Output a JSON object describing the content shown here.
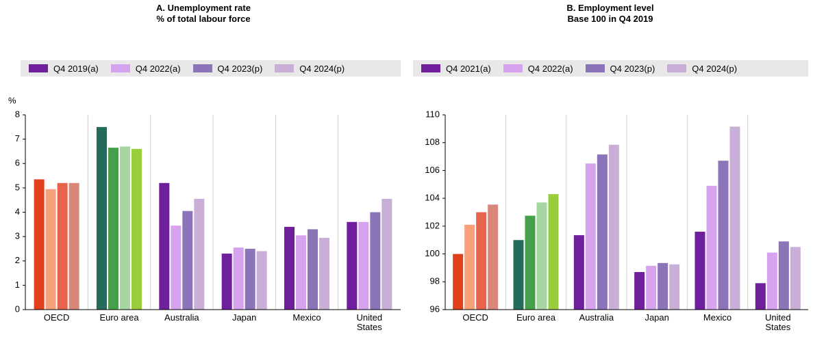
{
  "chart_data": [
    {
      "type": "bar",
      "title": "A. Unemployment rate",
      "subtitle": "% of total labour force",
      "y_label": "%",
      "categories": [
        "OECD",
        "Euro area",
        "Australia",
        "Japan",
        "Mexico",
        "United States"
      ],
      "series": [
        {
          "name": "Q4 2019(a)",
          "color": "#6f1f9b",
          "colors": [
            "#e0401c",
            "#236b5a",
            "#6f1f9b",
            "#6f1f9b",
            "#6f1f9b",
            "#6f1f9b"
          ],
          "values": [
            5.35,
            7.5,
            5.2,
            2.3,
            3.4,
            3.6
          ]
        },
        {
          "name": "Q4 2022(a)",
          "color": "#d7a2ee",
          "colors": [
            "#f7a07c",
            "#46a04a",
            "#d7a2ee",
            "#d7a2ee",
            "#d7a2ee",
            "#d7a2ee"
          ],
          "values": [
            4.95,
            6.65,
            3.45,
            2.55,
            3.05,
            3.6
          ]
        },
        {
          "name": "Q4 2023(p)",
          "color": "#8c74b8",
          "colors": [
            "#e8634c",
            "#a6d6a2",
            "#8c74b8",
            "#8c74b8",
            "#8c74b8",
            "#8c74b8"
          ],
          "values": [
            5.2,
            6.7,
            4.05,
            2.5,
            3.3,
            4.0
          ]
        },
        {
          "name": "Q4 2024(p)",
          "color": "#c9aed8",
          "colors": [
            "#d9877a",
            "#9acd3c",
            "#c9aed8",
            "#c9aed8",
            "#c9aed8",
            "#c9aed8"
          ],
          "values": [
            5.2,
            6.6,
            4.55,
            2.4,
            2.95,
            4.55
          ]
        }
      ],
      "ylim": [
        0,
        8
      ],
      "yticks": [
        0,
        1,
        2,
        3,
        4,
        5,
        6,
        7,
        8
      ]
    },
    {
      "type": "bar",
      "title": "B. Employment level",
      "subtitle": "Base 100 in Q4 2019",
      "categories": [
        "OECD",
        "Euro area",
        "Australia",
        "Japan",
        "Mexico",
        "United States"
      ],
      "series": [
        {
          "name": "Q4 2021(a)",
          "color": "#6f1f9b",
          "colors": [
            "#e0401c",
            "#236b5a",
            "#6f1f9b",
            "#6f1f9b",
            "#6f1f9b",
            "#6f1f9b"
          ],
          "values": [
            100.0,
            101.0,
            101.35,
            98.7,
            101.6,
            97.9
          ]
        },
        {
          "name": "Q4 2022(a)",
          "color": "#d7a2ee",
          "colors": [
            "#f7a07c",
            "#46a04a",
            "#d7a2ee",
            "#d7a2ee",
            "#d7a2ee",
            "#d7a2ee"
          ],
          "values": [
            102.1,
            102.75,
            106.5,
            99.15,
            104.9,
            100.1
          ]
        },
        {
          "name": "Q4 2023(p)",
          "color": "#8c74b8",
          "colors": [
            "#e8634c",
            "#a6d6a2",
            "#8c74b8",
            "#8c74b8",
            "#8c74b8",
            "#8c74b8"
          ],
          "values": [
            103.0,
            103.7,
            107.15,
            99.35,
            106.7,
            100.9
          ]
        },
        {
          "name": "Q4 2024(p)",
          "color": "#c9aed8",
          "colors": [
            "#d9877a",
            "#9acd3c",
            "#c9aed8",
            "#c9aed8",
            "#c9aed8",
            "#c9aed8"
          ],
          "values": [
            103.55,
            104.3,
            107.85,
            99.25,
            109.15,
            100.5
          ]
        }
      ],
      "ylim": [
        96,
        110
      ],
      "yticks": [
        96,
        98,
        100,
        102,
        104,
        106,
        108,
        110
      ]
    }
  ]
}
